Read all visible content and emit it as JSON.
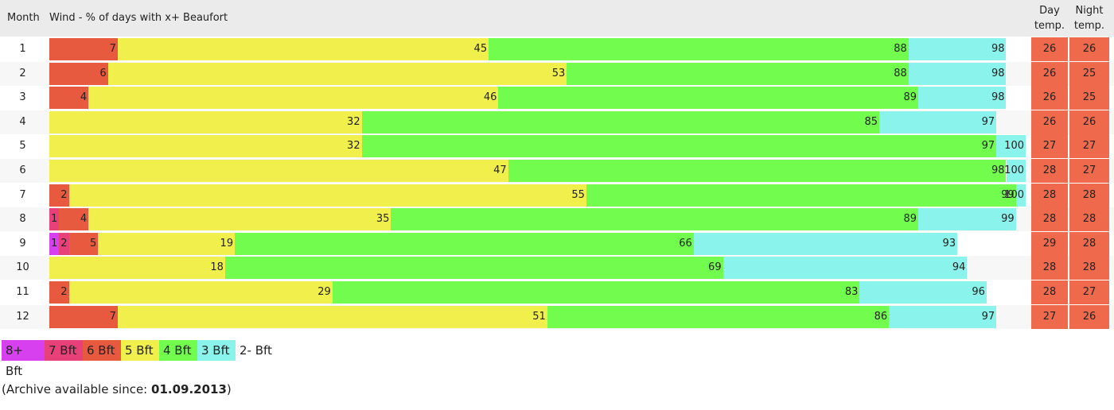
{
  "header": {
    "month": "Month",
    "wind_title": "Wind - % of days with x+ Beaufort",
    "day_temp": [
      "Day",
      "temp."
    ],
    "night_temp": [
      "Night",
      "temp."
    ]
  },
  "colors": {
    "8+ Bft": "#d640ef",
    "7 Bft": "#e8417a",
    "6 Bft": "#e85a40",
    "5 Bft": "#f1ef4c",
    "4 Bft": "#72fc4e",
    "3 Bft": "#8af3ec",
    "temp": "#ef6a4c"
  },
  "chart_data": {
    "type": "bar",
    "stacked": "cumulative",
    "xlim": [
      0,
      100
    ],
    "months": [
      1,
      2,
      3,
      4,
      5,
      6,
      7,
      8,
      9,
      10,
      11,
      12
    ],
    "bands": [
      "8+ Bft",
      "7 Bft",
      "6 Bft",
      "5 Bft",
      "4 Bft",
      "3 Bft"
    ],
    "values": [
      {
        "month": 1,
        "6 Bft": 7,
        "5 Bft": 45,
        "4 Bft": 88,
        "3 Bft": 98,
        "day": 26,
        "night": 26
      },
      {
        "month": 2,
        "6 Bft": 6,
        "5 Bft": 53,
        "4 Bft": 88,
        "3 Bft": 98,
        "day": 26,
        "night": 25
      },
      {
        "month": 3,
        "6 Bft": 4,
        "5 Bft": 46,
        "4 Bft": 89,
        "3 Bft": 98,
        "day": 26,
        "night": 25
      },
      {
        "month": 4,
        "5 Bft": 32,
        "4 Bft": 85,
        "3 Bft": 97,
        "day": 26,
        "night": 26
      },
      {
        "month": 5,
        "5 Bft": 32,
        "4 Bft": 97,
        "3 Bft": 100,
        "day": 27,
        "night": 27
      },
      {
        "month": 6,
        "5 Bft": 47,
        "4 Bft": 98,
        "3 Bft": 100,
        "day": 28,
        "night": 27
      },
      {
        "month": 7,
        "6 Bft": 2,
        "5 Bft": 55,
        "4 Bft": 99,
        "3 Bft": 100,
        "day": 28,
        "night": 28
      },
      {
        "month": 8,
        "7 Bft": 1,
        "6 Bft": 4,
        "5 Bft": 35,
        "4 Bft": 89,
        "3 Bft": 99,
        "day": 28,
        "night": 28
      },
      {
        "month": 9,
        "8+ Bft": 1,
        "7 Bft": 2,
        "6 Bft": 5,
        "5 Bft": 19,
        "4 Bft": 66,
        "3 Bft": 93,
        "day": 29,
        "night": 28
      },
      {
        "month": 10,
        "5 Bft": 18,
        "4 Bft": 69,
        "3 Bft": 94,
        "day": 28,
        "night": 28
      },
      {
        "month": 11,
        "6 Bft": 2,
        "5 Bft": 29,
        "4 Bft": 83,
        "3 Bft": 96,
        "day": 28,
        "night": 27
      },
      {
        "month": 12,
        "6 Bft": 7,
        "5 Bft": 51,
        "4 Bft": 86,
        "3 Bft": 97,
        "day": 27,
        "night": 26
      }
    ]
  },
  "legend": [
    {
      "label": "8+ Bft",
      "color": "#d640ef"
    },
    {
      "label": "7 Bft",
      "color": "#e8417a"
    },
    {
      "label": "6 Bft",
      "color": "#e85a40"
    },
    {
      "label": "5 Bft",
      "color": "#f1ef4c"
    },
    {
      "label": "4 Bft",
      "color": "#72fc4e"
    },
    {
      "label": "3 Bft",
      "color": "#8af3ec"
    },
    {
      "label": "2- Bft",
      "color": ""
    }
  ],
  "archive": {
    "prefix": "(Archive available since: ",
    "date": "01.09.2013",
    "suffix": ")"
  }
}
